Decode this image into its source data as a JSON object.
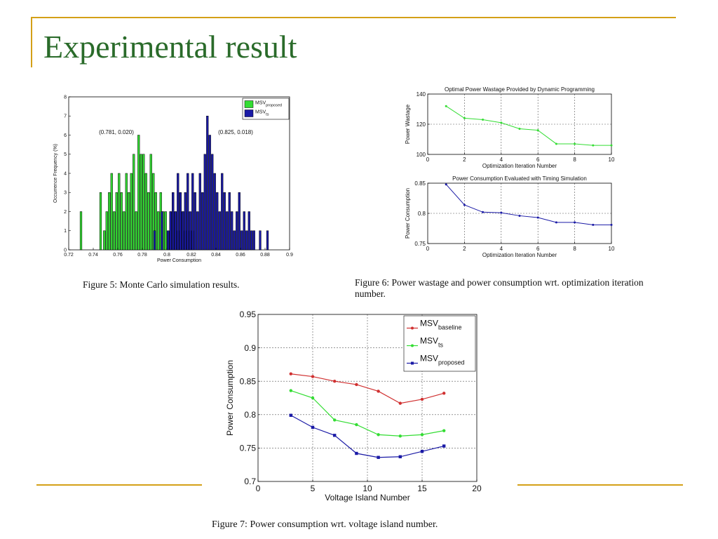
{
  "slide": {
    "title": "Experimental result",
    "accent_color": "#d4a017",
    "title_color": "#2a6b2a"
  },
  "fig5": {
    "caption": "Figure 5: Monte Carlo simulation results.",
    "annotation_left": "(0.781, 0.020)",
    "annotation_right": "(0.825, 0.018)"
  },
  "fig6": {
    "caption": "Figure 6: Power wastage and power consumption wrt. optimization iteration number."
  },
  "fig7": {
    "caption": "Figure 7: Power consumption wrt. voltage island number."
  },
  "chart_data": [
    {
      "id": "fig5",
      "type": "bar",
      "title": "",
      "xlabel": "Power Consumption",
      "ylabel": "Occurrence Frequency (%)",
      "xlim": [
        0.72,
        0.9
      ],
      "ylim": [
        0,
        8
      ],
      "xticks": [
        0.72,
        0.74,
        0.76,
        0.78,
        0.8,
        0.82,
        0.84,
        0.86,
        0.88,
        0.9
      ],
      "yticks": [
        0,
        1,
        2,
        3,
        4,
        5,
        6,
        7,
        8
      ],
      "legend_position": "top-right",
      "series": [
        {
          "name": "MSV",
          "subscript": "proposed",
          "color": "#33dd33",
          "x": [
            0.73,
            0.746,
            0.749,
            0.751,
            0.753,
            0.755,
            0.757,
            0.759,
            0.761,
            0.763,
            0.765,
            0.767,
            0.769,
            0.771,
            0.773,
            0.775,
            0.777,
            0.779,
            0.781,
            0.783,
            0.785,
            0.787,
            0.789,
            0.791,
            0.793,
            0.795,
            0.797,
            0.799,
            0.801,
            0.803,
            0.805,
            0.807,
            0.809,
            0.811,
            0.813,
            0.815,
            0.817,
            0.819,
            0.821
          ],
          "y": [
            2,
            3,
            1,
            2,
            3,
            4,
            2,
            3,
            4,
            3,
            2,
            4,
            3,
            4,
            5,
            2,
            6,
            5,
            5,
            4,
            3,
            5,
            4,
            3,
            2,
            3,
            2,
            2,
            1,
            2,
            3,
            2,
            1,
            3,
            2,
            1,
            2,
            1,
            1
          ]
        },
        {
          "name": "MSV",
          "subscript": "ts",
          "color": "#1a1aa6",
          "x": [
            0.79,
            0.796,
            0.801,
            0.803,
            0.805,
            0.807,
            0.809,
            0.811,
            0.813,
            0.815,
            0.817,
            0.819,
            0.821,
            0.823,
            0.825,
            0.827,
            0.829,
            0.831,
            0.833,
            0.835,
            0.837,
            0.839,
            0.841,
            0.843,
            0.845,
            0.847,
            0.849,
            0.851,
            0.853,
            0.855,
            0.857,
            0.859,
            0.861,
            0.863,
            0.865,
            0.867,
            0.869,
            0.871,
            0.876,
            0.882
          ],
          "y": [
            1,
            2,
            1,
            2,
            3,
            2,
            4,
            3,
            2,
            3,
            4,
            2,
            4,
            3,
            2,
            4,
            3,
            5,
            7,
            6,
            5,
            4,
            3,
            2,
            4,
            3,
            2,
            3,
            2,
            1,
            2,
            3,
            1,
            2,
            1,
            2,
            1,
            1,
            1,
            1
          ]
        }
      ]
    },
    {
      "id": "fig6a",
      "type": "line",
      "title": "Optimal Power Wastage Provided by Dynamic Programming",
      "xlabel": "Optimization Iteration Number",
      "ylabel": "Power Wastage",
      "xlim": [
        0,
        10
      ],
      "ylim": [
        100,
        140
      ],
      "xticks": [
        0,
        2,
        4,
        6,
        8,
        10
      ],
      "yticks": [
        100,
        120,
        140
      ],
      "grid": true,
      "series": [
        {
          "name": "",
          "color": "#33dd33",
          "x": [
            1,
            2,
            3,
            4,
            5,
            6,
            7,
            8,
            9,
            10
          ],
          "y": [
            132,
            124,
            123,
            121,
            117,
            116,
            107,
            107,
            106,
            106
          ]
        }
      ]
    },
    {
      "id": "fig6b",
      "type": "line",
      "title": "Power Consumption Evaluated with Timing Simulation",
      "xlabel": "Optimization Iteration Number",
      "ylabel": "Power Consumption",
      "xlim": [
        0,
        10
      ],
      "ylim": [
        0.75,
        0.85
      ],
      "xticks": [
        0,
        2,
        4,
        6,
        8,
        10
      ],
      "yticks": [
        0.75,
        0.8,
        0.85
      ],
      "grid": true,
      "series": [
        {
          "name": "",
          "color": "#1a1aa6",
          "x": [
            1,
            2,
            3,
            4,
            5,
            6,
            7,
            8,
            9,
            10
          ],
          "y": [
            0.848,
            0.814,
            0.802,
            0.801,
            0.796,
            0.793,
            0.785,
            0.785,
            0.781,
            0.781
          ]
        }
      ]
    },
    {
      "id": "fig7",
      "type": "line",
      "title": "",
      "xlabel": "Voltage Island Number",
      "ylabel": "Power Consumption",
      "xlim": [
        0,
        20
      ],
      "ylim": [
        0.7,
        0.95
      ],
      "xticks": [
        0,
        5,
        10,
        15,
        20
      ],
      "yticks": [
        0.7,
        0.75,
        0.8,
        0.85,
        0.9,
        0.95
      ],
      "grid": true,
      "legend_position": "top-right",
      "series": [
        {
          "name": "MSV",
          "subscript": "baseline",
          "color": "#d03030",
          "marker": "dot",
          "x": [
            3,
            5,
            7,
            9,
            11,
            13,
            15,
            17
          ],
          "y": [
            0.861,
            0.857,
            0.85,
            0.845,
            0.835,
            0.817,
            0.823,
            0.832
          ]
        },
        {
          "name": "MSV",
          "subscript": "ts",
          "color": "#33dd33",
          "marker": "dot",
          "x": [
            3,
            5,
            7,
            9,
            11,
            13,
            15,
            17
          ],
          "y": [
            0.836,
            0.825,
            0.792,
            0.785,
            0.77,
            0.768,
            0.77,
            0.776
          ]
        },
        {
          "name": "MSV",
          "subscript": "proposed",
          "color": "#1a1aa6",
          "marker": "square",
          "x": [
            3,
            5,
            7,
            9,
            11,
            13,
            15,
            17
          ],
          "y": [
            0.799,
            0.781,
            0.769,
            0.742,
            0.736,
            0.737,
            0.745,
            0.753
          ]
        }
      ]
    }
  ]
}
